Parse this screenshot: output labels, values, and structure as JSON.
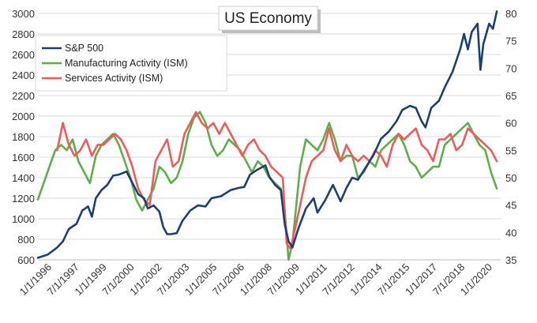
{
  "chart_data": {
    "type": "line",
    "title": "US Economy",
    "legend_position": "top-left",
    "grid": "horizontal",
    "x_ticks": [
      "1/1/1996",
      "7/1/1997",
      "1/1/1999",
      "7/1/2000",
      "1/1/2002",
      "7/1/2003",
      "1/1/2005",
      "7/1/2006",
      "1/1/2008",
      "7/1/2009",
      "1/1/2011",
      "7/1/2012",
      "1/1/2014",
      "7/1/2015",
      "1/1/2017",
      "7/1/2018",
      "1/1/2020"
    ],
    "xlim": [
      1996.0,
      2020.0
    ],
    "y_left": {
      "min": 600,
      "max": 3000,
      "ticks": [
        600,
        800,
        1000,
        1200,
        1400,
        1600,
        1800,
        2000,
        2200,
        2400,
        2600,
        2800,
        3000
      ]
    },
    "y_right": {
      "min": 35,
      "max": 80,
      "ticks": [
        35,
        40,
        45,
        50,
        55,
        60,
        65,
        70,
        75,
        80
      ]
    },
    "series": [
      {
        "name": "S&P 500",
        "axis": "left",
        "color": "#1f3f73",
        "x": [
          1996.0,
          1996.5,
          1997.0,
          1997.3,
          1997.6,
          1998.0,
          1998.3,
          1998.6,
          1998.8,
          1999.0,
          1999.3,
          1999.6,
          1999.9,
          2000.2,
          2000.6,
          2000.9,
          2001.2,
          2001.5,
          2001.7,
          2002.0,
          2002.3,
          2002.5,
          2002.7,
          2002.9,
          2003.2,
          2003.5,
          2003.9,
          2004.3,
          2004.7,
          2005.0,
          2005.5,
          2006.0,
          2006.4,
          2006.7,
          2007.0,
          2007.4,
          2007.8,
          2008.0,
          2008.3,
          2008.6,
          2008.8,
          2009.0,
          2009.2,
          2009.5,
          2009.9,
          2010.3,
          2010.5,
          2010.9,
          2011.3,
          2011.7,
          2012.0,
          2012.3,
          2012.6,
          2013.0,
          2013.4,
          2013.8,
          2014.2,
          2014.6,
          2014.9,
          2015.3,
          2015.6,
          2015.9,
          2016.1,
          2016.4,
          2016.8,
          2017.1,
          2017.5,
          2017.9,
          2018.1,
          2018.3,
          2018.5,
          2018.8,
          2018.95,
          2019.1,
          2019.4,
          2019.6,
          2019.8
        ],
        "values": [
          620,
          650,
          720,
          780,
          900,
          950,
          1080,
          1120,
          1020,
          1200,
          1280,
          1330,
          1420,
          1430,
          1460,
          1350,
          1240,
          1200,
          1100,
          1130,
          1070,
          920,
          850,
          850,
          860,
          980,
          1080,
          1130,
          1120,
          1200,
          1220,
          1280,
          1300,
          1310,
          1430,
          1480,
          1520,
          1410,
          1330,
          1280,
          950,
          780,
          720,
          900,
          1100,
          1200,
          1060,
          1180,
          1330,
          1170,
          1300,
          1400,
          1380,
          1500,
          1620,
          1780,
          1850,
          1950,
          2060,
          2100,
          2080,
          1950,
          1890,
          2080,
          2150,
          2280,
          2430,
          2650,
          2800,
          2650,
          2820,
          2900,
          2450,
          2700,
          2900,
          2850,
          3020
        ]
      },
      {
        "name": "Manufacturing Activity (ISM)",
        "axis": "right",
        "color": "#5fae4c",
        "x": [
          1996.0,
          1996.3,
          1996.6,
          1996.9,
          1997.2,
          1997.5,
          1997.8,
          1998.1,
          1998.4,
          1998.7,
          1999.0,
          1999.3,
          1999.6,
          1999.9,
          2000.2,
          2000.5,
          2000.8,
          2001.1,
          2001.4,
          2001.7,
          2002.0,
          2002.3,
          2002.6,
          2002.9,
          2003.2,
          2003.5,
          2003.8,
          2004.1,
          2004.4,
          2004.7,
          2005.0,
          2005.3,
          2005.6,
          2005.9,
          2006.2,
          2006.5,
          2006.8,
          2007.1,
          2007.4,
          2007.7,
          2008.0,
          2008.3,
          2008.6,
          2008.8,
          2009.0,
          2009.2,
          2009.4,
          2009.6,
          2009.9,
          2010.2,
          2010.5,
          2010.8,
          2011.1,
          2011.4,
          2011.7,
          2012.0,
          2012.3,
          2012.6,
          2012.9,
          2013.2,
          2013.5,
          2013.8,
          2014.1,
          2014.4,
          2014.7,
          2015.0,
          2015.3,
          2015.6,
          2015.9,
          2016.2,
          2016.5,
          2016.8,
          2017.1,
          2017.4,
          2017.7,
          2018.0,
          2018.3,
          2018.6,
          2018.9,
          2019.2,
          2019.5,
          2019.8
        ],
        "values": [
          46,
          49,
          52,
          55,
          56,
          55,
          57,
          53,
          51,
          49,
          54,
          56,
          57,
          58,
          56,
          53,
          50,
          46,
          44,
          46,
          48,
          52,
          51,
          49,
          50,
          53,
          58,
          61,
          62,
          60,
          56,
          54,
          55,
          57,
          56,
          55,
          53,
          51,
          53,
          52,
          50,
          49,
          48,
          44,
          35,
          38,
          45,
          52,
          57,
          56,
          55,
          57,
          60,
          57,
          53,
          54,
          54,
          50,
          51,
          53,
          52,
          55,
          56,
          57,
          58,
          56,
          53,
          52,
          50,
          51,
          52,
          52,
          56,
          57,
          58,
          59,
          60,
          58,
          56,
          55,
          51,
          48
        ]
      },
      {
        "name": "Services Activity (ISM)",
        "axis": "right",
        "color": "#ef5b5b",
        "x": [
          1997.0,
          1997.3,
          1997.6,
          1997.9,
          1998.2,
          1998.5,
          1998.8,
          1999.1,
          1999.4,
          1999.7,
          2000.0,
          2000.3,
          2000.6,
          2000.9,
          2001.2,
          2001.5,
          2001.8,
          2002.1,
          2002.4,
          2002.7,
          2003.0,
          2003.3,
          2003.6,
          2003.9,
          2004.2,
          2004.5,
          2004.8,
          2005.1,
          2005.4,
          2005.7,
          2006.0,
          2006.3,
          2006.6,
          2006.9,
          2007.2,
          2007.5,
          2007.8,
          2008.1,
          2008.4,
          2008.7,
          2008.9,
          2009.1,
          2009.3,
          2009.6,
          2009.9,
          2010.2,
          2010.5,
          2010.8,
          2011.1,
          2011.4,
          2011.7,
          2012.0,
          2012.3,
          2012.6,
          2012.9,
          2013.2,
          2013.5,
          2013.8,
          2014.1,
          2014.4,
          2014.7,
          2015.0,
          2015.3,
          2015.6,
          2015.9,
          2016.2,
          2016.5,
          2016.8,
          2017.1,
          2017.4,
          2017.7,
          2018.0,
          2018.3,
          2018.6,
          2018.9,
          2019.2,
          2019.5,
          2019.8
        ],
        "values": [
          55,
          60,
          56,
          54,
          55,
          57,
          54,
          56,
          56,
          57,
          58,
          57,
          55,
          52,
          48,
          46,
          45,
          53,
          55,
          57,
          52,
          53,
          58,
          60,
          62,
          60,
          59,
          60,
          58,
          60,
          58,
          56,
          54,
          56,
          57,
          55,
          54,
          52,
          51,
          50,
          38,
          37,
          40,
          45,
          50,
          53,
          54,
          55,
          59,
          55,
          53,
          56,
          54,
          53,
          54,
          53,
          55,
          54,
          52,
          56,
          58,
          57,
          58,
          59,
          56,
          55,
          53,
          57,
          57,
          58,
          55,
          56,
          59,
          58,
          57,
          56,
          55,
          53
        ]
      }
    ]
  }
}
